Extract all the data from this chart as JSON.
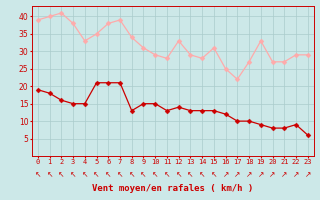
{
  "xlabel": "Vent moyen/en rafales ( km/h )",
  "x": [
    0,
    1,
    2,
    3,
    4,
    5,
    6,
    7,
    8,
    9,
    10,
    11,
    12,
    13,
    14,
    15,
    16,
    17,
    18,
    19,
    20,
    21,
    22,
    23
  ],
  "x_labels": [
    "0",
    "1",
    "2",
    "3",
    "4",
    "5",
    "6",
    "7",
    "8",
    "9",
    "10",
    "11",
    "12",
    "13",
    "14",
    "15",
    "16",
    "17",
    "18",
    "19",
    "20",
    "21",
    "22",
    "23"
  ],
  "y_mean": [
    19,
    18,
    16,
    15,
    15,
    21,
    21,
    21,
    13,
    15,
    15,
    13,
    14,
    13,
    13,
    13,
    12,
    10,
    10,
    9,
    8,
    8,
    9,
    6
  ],
  "y_gust": [
    39,
    40,
    41,
    38,
    33,
    35,
    38,
    39,
    34,
    31,
    29,
    28,
    33,
    29,
    28,
    31,
    25,
    22,
    27,
    33,
    27,
    27,
    29,
    29
  ],
  "mean_color": "#cc0000",
  "gust_color": "#ffaaaa",
  "bg_color": "#cce8e8",
  "grid_color": "#aacccc",
  "axis_color": "#cc0000",
  "ylim": [
    0,
    43
  ],
  "yticks": [
    5,
    10,
    15,
    20,
    25,
    30,
    35,
    40
  ],
  "arrow_chars": [
    "↖",
    "↖",
    "↖",
    "↖",
    "↖",
    "↖",
    "↖",
    "↖",
    "↖",
    "↖",
    "↖",
    "↖",
    "↖",
    "↖",
    "↖",
    "↖",
    "↗",
    "↗",
    "↗",
    "↗",
    "↗",
    "↗",
    "↗",
    "↗"
  ]
}
